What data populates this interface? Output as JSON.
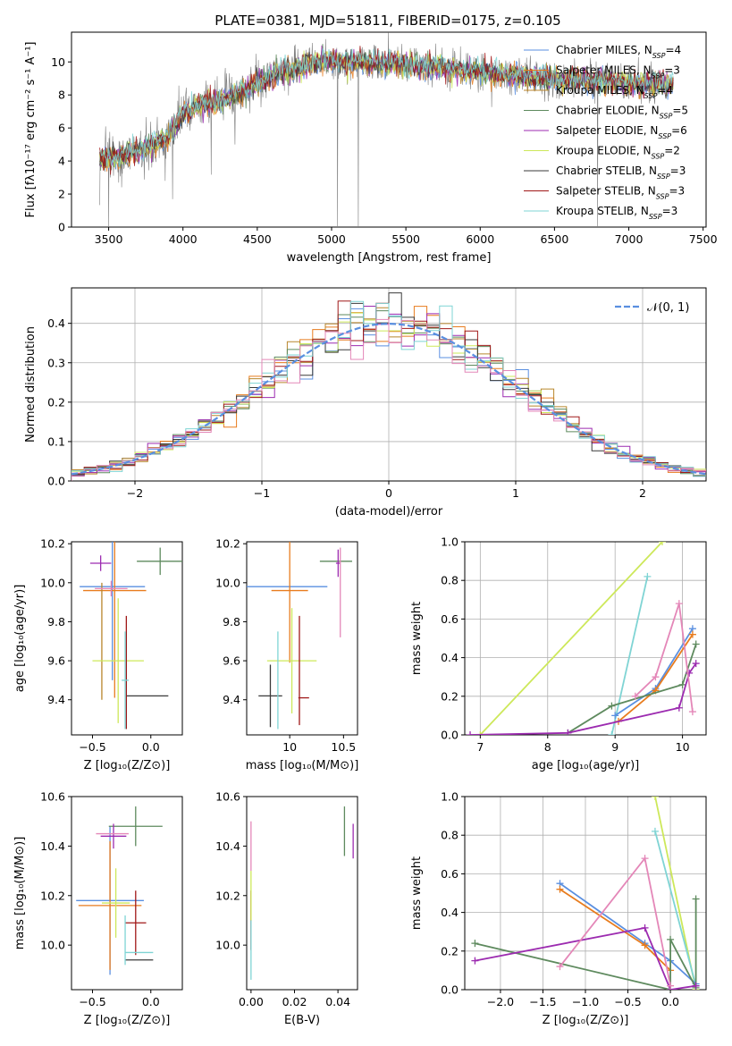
{
  "colors": {
    "Chabrier MILES": "#5a8fe0",
    "Salpeter MILES": "#e87c1e",
    "Kroupa MILES": "#b8862c",
    "Chabrier ELODIE": "#5e8a5e",
    "Salpeter ELODIE": "#9c2bb0",
    "Kroupa ELODIE": "#cde85a",
    "Chabrier STELIB": "#3a3a3a",
    "Salpeter STELIB": "#a01818",
    "Kroupa STELIB": "#7fd4d4",
    "spectrum": "#7f7f7f",
    "pink": "#e487b8",
    "gaussian": "#5a8fe0"
  },
  "chart_data": [
    {
      "id": "spectrum",
      "type": "line",
      "title": "PLATE=0381, MJD=51811, FIBERID=0175, z=0.105",
      "xlabel": "wavelength [Angstrom, rest frame]",
      "ylabel": "Flux [fλ10⁻¹⁷ erg cm⁻² s⁻¹ A⁻¹]",
      "xlim": [
        3250,
        7520
      ],
      "ylim": [
        0,
        11.8
      ],
      "xticks": [
        3500,
        4000,
        4500,
        5000,
        5500,
        6000,
        6500,
        7000,
        7500
      ],
      "yticks": [
        0,
        2,
        4,
        6,
        8,
        10
      ],
      "continuum": [
        [
          3440,
          4.1
        ],
        [
          3600,
          4.4
        ],
        [
          3700,
          4.6
        ],
        [
          3800,
          5.0
        ],
        [
          3900,
          5.5
        ],
        [
          4000,
          6.8
        ],
        [
          4100,
          7.3
        ],
        [
          4200,
          7.6
        ],
        [
          4300,
          7.8
        ],
        [
          4400,
          8.2
        ],
        [
          4500,
          8.7
        ],
        [
          4600,
          9.1
        ],
        [
          4700,
          9.5
        ],
        [
          4800,
          9.7
        ],
        [
          4900,
          10.0
        ],
        [
          5000,
          10.0
        ],
        [
          5200,
          10.0
        ],
        [
          5400,
          9.9
        ],
        [
          5600,
          9.8
        ],
        [
          5800,
          9.6
        ],
        [
          6000,
          9.4
        ],
        [
          6200,
          9.2
        ],
        [
          6400,
          9.0
        ],
        [
          6600,
          8.9
        ],
        [
          6800,
          8.8
        ],
        [
          7000,
          8.7
        ],
        [
          7300,
          8.6
        ]
      ],
      "series_labels": [
        "Chabrier MILES",
        "Salpeter MILES",
        "Kroupa MILES",
        "Chabrier ELODIE",
        "Salpeter ELODIE",
        "Kroupa ELODIE",
        "Chabrier STELIB",
        "Salpeter STELIB",
        "Kroupa STELIB"
      ],
      "legend": [
        {
          "name": "Chabrier MILES",
          "n": "4"
        },
        {
          "name": "Salpeter MILES",
          "n": "3"
        },
        {
          "name": "Kroupa MILES",
          "n": "4"
        },
        {
          "name": "Chabrier ELODIE",
          "n": "5"
        },
        {
          "name": "Salpeter ELODIE",
          "n": "6"
        },
        {
          "name": "Kroupa ELODIE",
          "n": "2"
        },
        {
          "name": "Chabrier STELIB",
          "n": "3"
        },
        {
          "name": "Salpeter STELIB",
          "n": "3"
        },
        {
          "name": "Kroupa STELIB",
          "n": "3"
        }
      ],
      "legend_placement": "top-right"
    },
    {
      "id": "residuals",
      "type": "histogram",
      "xlabel": "(data-model)/error",
      "ylabel": "Normed distribution",
      "xlim": [
        -2.5,
        2.5
      ],
      "ylim": [
        0,
        0.49
      ],
      "xticks": [
        -2,
        -1,
        0,
        1,
        2
      ],
      "yticks": [
        0.0,
        0.1,
        0.2,
        0.3,
        0.4
      ],
      "grid": true,
      "bin_edges_from": -2.5,
      "bin_width": 0.1,
      "bins": 50,
      "gaussian_label": "𝒩(0, 1)",
      "legend_placement": "top-right"
    },
    {
      "id": "z-age",
      "type": "errorbar",
      "xlabel": "Z [log₁₀(Z/Z⊙)]",
      "ylabel": "age  [log₁₀(age/yr)]",
      "xlim": [
        -0.68,
        0.27
      ],
      "ylim": [
        9.22,
        10.21
      ],
      "xticks": [
        -0.5,
        0.0
      ],
      "xtick_labels": [
        "−0.5",
        "0.0"
      ],
      "yticks": [
        9.4,
        9.6,
        9.8,
        10.0,
        10.2
      ],
      "points": [
        {
          "c": "Chabrier MILES",
          "x": -0.33,
          "xe": 0.28,
          "y": 9.98,
          "ye": 0.48
        },
        {
          "c": "Salpeter MILES",
          "x": -0.31,
          "xe": 0.27,
          "y": 9.96,
          "ye": 0.55
        },
        {
          "c": "Kroupa MILES",
          "x": -0.42,
          "xe": 0.0,
          "y": 9.7,
          "ye": 0.3
        },
        {
          "c": "Chabrier ELODIE",
          "x": 0.08,
          "xe": 0.2,
          "y": 10.11,
          "ye": 0.07
        },
        {
          "c": "Salpeter ELODIE",
          "x": -0.43,
          "xe": 0.09,
          "y": 10.1,
          "ye": 0.04
        },
        {
          "c": "Kroupa ELODIE",
          "x": -0.28,
          "xe": 0.22,
          "y": 9.6,
          "ye": 0.32
        },
        {
          "c": "Chabrier STELIB",
          "x": -0.03,
          "xe": 0.18,
          "y": 9.42,
          "ye": 0.0
        },
        {
          "c": "Salpeter STELIB",
          "x": -0.21,
          "xe": 0.0,
          "y": 9.54,
          "ye": 0.29
        },
        {
          "c": "Kroupa STELIB",
          "x": -0.22,
          "xe": 0.03,
          "y": 9.5,
          "ye": 0.25
        },
        {
          "c": "pink",
          "x": -0.34,
          "xe": 0.14,
          "y": 9.97,
          "ye": 0.04
        }
      ]
    },
    {
      "id": "mass-age",
      "type": "errorbar",
      "xlabel": "mass [log₁₀(M/M⊙)]",
      "xlim": [
        9.6,
        10.63
      ],
      "ylim": [
        9.22,
        10.21
      ],
      "xticks": [
        10.0,
        10.5
      ],
      "yticks": [
        9.4,
        9.6,
        9.8,
        10.0,
        10.2
      ],
      "points": [
        {
          "c": "Chabrier MILES",
          "x": 9.97,
          "xe": 0.38,
          "y": 9.98,
          "ye": 0.0
        },
        {
          "c": "Salpeter MILES",
          "x": 10.0,
          "xe": 0.17,
          "y": 9.96,
          "ye": 0.37
        },
        {
          "c": "Chabrier ELODIE",
          "x": 10.43,
          "xe": 0.15,
          "y": 10.11,
          "ye": 0.0
        },
        {
          "c": "Salpeter ELODIE",
          "x": 10.45,
          "xe": 0.02,
          "y": 10.1,
          "ye": 0.07
        },
        {
          "c": "Kroupa ELODIE",
          "x": 10.02,
          "xe": 0.23,
          "y": 9.6,
          "ye": 0.27
        },
        {
          "c": "Chabrier STELIB",
          "x": 9.82,
          "xe": 0.11,
          "y": 9.42,
          "ye": 0.16
        },
        {
          "c": "Salpeter STELIB",
          "x": 10.13,
          "xe": 0.05,
          "y": 9.41,
          "ye": 0.0
        },
        {
          "c": "Salpeter STELIB",
          "x": 10.09,
          "xe": 0.0,
          "y": 9.55,
          "ye": 0.28
        },
        {
          "c": "Kroupa STELIB",
          "x": 9.89,
          "xe": 0.0,
          "y": 9.5,
          "ye": 0.25
        },
        {
          "c": "pink",
          "x": 10.47,
          "xe": 0.0,
          "y": 9.95,
          "ye": 0.23
        }
      ]
    },
    {
      "id": "age-weight",
      "type": "line",
      "xlabel": "age  [log₁₀(age/yr)]",
      "ylabel": "mass weight",
      "xlim": [
        6.77,
        10.35
      ],
      "ylim": [
        0,
        1.0
      ],
      "xticks": [
        7,
        8,
        9,
        10
      ],
      "yticks": [
        0.0,
        0.2,
        0.4,
        0.6,
        0.8,
        1.0
      ],
      "grid": true,
      "series": [
        {
          "c": "Kroupa ELODIE",
          "x": [
            7.0,
            9.7
          ],
          "y": [
            0.0,
            1.0
          ]
        },
        {
          "c": "Kroupa STELIB",
          "x": [
            8.95,
            9.48
          ],
          "y": [
            0.0,
            0.82
          ]
        },
        {
          "c": "Chabrier MILES",
          "x": [
            9.0,
            9.6,
            10.15
          ],
          "y": [
            0.1,
            0.24,
            0.55
          ]
        },
        {
          "c": "Salpeter MILES",
          "x": [
            9.05,
            9.6,
            10.15
          ],
          "y": [
            0.07,
            0.23,
            0.52
          ]
        },
        {
          "c": "Chabrier ELODIE",
          "x": [
            8.3,
            8.95,
            10.0,
            10.2
          ],
          "y": [
            0.01,
            0.15,
            0.26,
            0.47
          ]
        },
        {
          "c": "Salpeter ELODIE",
          "x": [
            6.85,
            8.3,
            9.95,
            10.1,
            10.2
          ],
          "y": [
            0.0,
            0.01,
            0.14,
            0.32,
            0.37
          ]
        },
        {
          "c": "pink",
          "x": [
            9.3,
            9.6,
            9.95,
            10.15
          ],
          "y": [
            0.2,
            0.3,
            0.68,
            0.12
          ]
        }
      ]
    },
    {
      "id": "z-mass",
      "type": "errorbar",
      "xlabel": "Z [log₁₀(Z/Z⊙)]",
      "ylabel": "mass [log₁₀(M/M⊙)]",
      "xlim": [
        -0.68,
        0.27
      ],
      "ylim": [
        9.82,
        10.6
      ],
      "xticks": [
        -0.5,
        0.0
      ],
      "xtick_labels": [
        "−0.5",
        "0.0"
      ],
      "yticks": [
        10.0,
        10.2,
        10.4,
        10.6
      ],
      "points": [
        {
          "c": "Chabrier MILES",
          "x": -0.35,
          "xe": 0.29,
          "y": 10.18,
          "ye": 0.3
        },
        {
          "c": "Salpeter MILES",
          "x": -0.35,
          "xe": 0.27,
          "y": 10.16,
          "ye": 0.26
        },
        {
          "c": "Chabrier ELODIE",
          "x": -0.13,
          "xe": 0.23,
          "y": 10.48,
          "ye": 0.08
        },
        {
          "c": "Salpeter ELODIE",
          "x": -0.32,
          "xe": 0.11,
          "y": 10.44,
          "ye": 0.05
        },
        {
          "c": "Kroupa ELODIE",
          "x": -0.3,
          "xe": 0.12,
          "y": 10.17,
          "ye": 0.14
        },
        {
          "c": "Chabrier STELIB",
          "x": -0.1,
          "xe": 0.12,
          "y": 9.94,
          "ye": 0.0
        },
        {
          "c": "Salpeter STELIB",
          "x": -0.13,
          "xe": 0.09,
          "y": 10.09,
          "ye": 0.13
        },
        {
          "c": "Kroupa STELIB",
          "x": -0.1,
          "xe": 0.12,
          "y": 9.97,
          "ye": 0.0
        },
        {
          "c": "Kroupa STELIB",
          "x": -0.22,
          "xe": 0.0,
          "y": 10.02,
          "ye": 0.1
        },
        {
          "c": "pink",
          "x": -0.33,
          "xe": 0.14,
          "y": 10.45,
          "ye": 0.0
        }
      ]
    },
    {
      "id": "ebv-mass",
      "type": "errorbar",
      "xlabel": "E(B-V)",
      "xlim": [
        -0.002,
        0.049
      ],
      "ylim": [
        9.82,
        10.6
      ],
      "xticks": [
        0.0,
        0.02,
        0.04
      ],
      "xtick_labels": [
        "0.00",
        "0.02",
        "0.04"
      ],
      "yticks": [
        10.0,
        10.2,
        10.4,
        10.6
      ],
      "points": [
        {
          "c": "Chabrier ELODIE",
          "x": 0.043,
          "xe": 0.0,
          "y": 10.46,
          "ye": 0.1
        },
        {
          "c": "Salpeter ELODIE",
          "x": 0.047,
          "xe": 0.0,
          "y": 10.42,
          "ye": 0.07
        },
        {
          "c": "Salpeter STELIB",
          "x": 0.0,
          "xe": 0.0,
          "y": 10.1,
          "ye": 0.12
        },
        {
          "c": "Kroupa STELIB",
          "x": 0.0,
          "xe": 0.0,
          "y": 9.98,
          "ye": 0.12
        },
        {
          "c": "pink",
          "x": 0.0,
          "xe": 0.0,
          "y": 10.4,
          "ye": 0.1
        },
        {
          "c": "Kroupa ELODIE",
          "x": 0.0,
          "xe": 0.0,
          "y": 10.2,
          "ye": 0.1
        }
      ]
    },
    {
      "id": "z-weight",
      "type": "line",
      "xlabel": "Z [log₁₀(Z/Z⊙)]",
      "ylabel": "mass weight",
      "xlim": [
        -2.42,
        0.42
      ],
      "ylim": [
        0,
        1.0
      ],
      "xticks": [
        -2.0,
        -1.5,
        -1.0,
        -0.5,
        0.0
      ],
      "xtick_labels": [
        "−2.0",
        "−1.5",
        "−1.0",
        "−0.5",
        "0.0"
      ],
      "yticks": [
        0.0,
        0.2,
        0.4,
        0.6,
        0.8,
        1.0
      ],
      "grid": true,
      "series": [
        {
          "c": "Kroupa ELODIE",
          "x": [
            -0.18,
            0.3
          ],
          "y": [
            1.0,
            0.0
          ]
        },
        {
          "c": "Kroupa STELIB",
          "x": [
            -0.18,
            0.3
          ],
          "y": [
            0.82,
            0.02
          ]
        },
        {
          "c": "Chabrier MILES",
          "x": [
            -1.3,
            -0.3,
            0.0,
            0.3
          ],
          "y": [
            0.55,
            0.24,
            0.15,
            0.03
          ]
        },
        {
          "c": "Salpeter MILES",
          "x": [
            -1.3,
            -0.3,
            0.0
          ],
          "y": [
            0.52,
            0.23,
            0.1
          ]
        },
        {
          "c": "Chabrier ELODIE",
          "x": [
            -2.3,
            0.0,
            0.0,
            0.3,
            0.3
          ],
          "y": [
            0.24,
            0.0,
            0.26,
            0.01,
            0.47
          ]
        },
        {
          "c": "Salpeter ELODIE",
          "x": [
            -2.3,
            -0.3,
            0.0,
            0.3
          ],
          "y": [
            0.15,
            0.32,
            0.0,
            0.02
          ]
        },
        {
          "c": "pink",
          "x": [
            -1.3,
            -0.3,
            0.0
          ],
          "y": [
            0.12,
            0.68,
            0.02
          ]
        }
      ]
    }
  ]
}
